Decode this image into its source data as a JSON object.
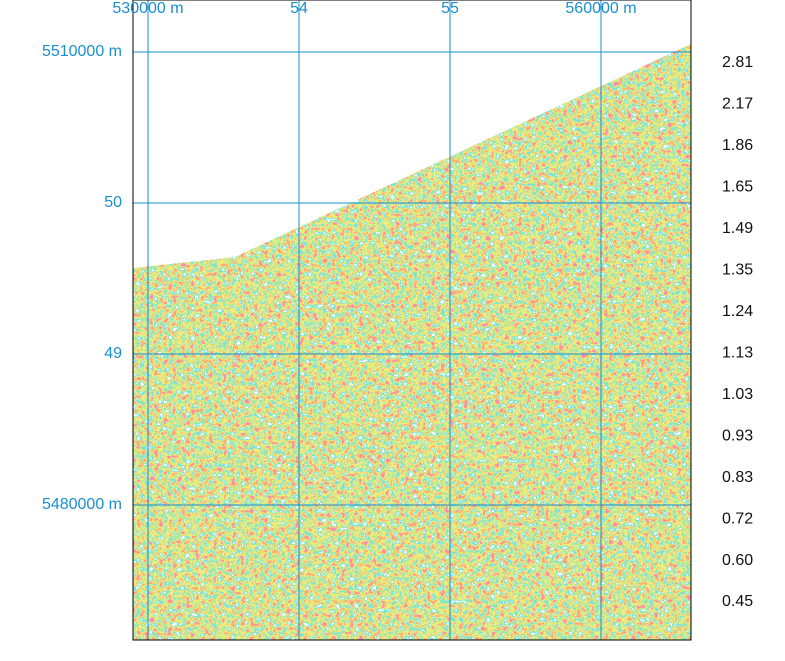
{
  "map": {
    "x_labels": [
      "530000 m",
      "54",
      "55",
      "560000 m"
    ],
    "y_labels": [
      "5510000 m",
      "50",
      "49",
      "5480000 m"
    ],
    "legend": [
      "2.81",
      "2.17",
      "1.86",
      "1.65",
      "1.49",
      "1.35",
      "1.24",
      "1.13",
      "1.03",
      "0.93",
      "0.83",
      "0.72",
      "0.60",
      "0.45"
    ]
  }
}
